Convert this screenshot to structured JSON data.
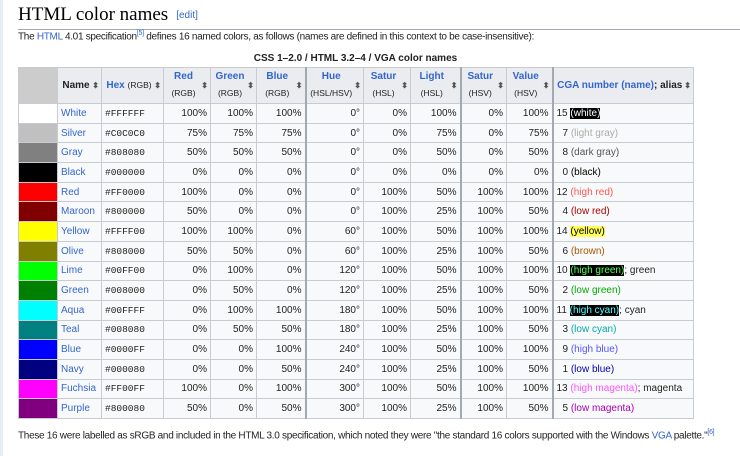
{
  "heading": {
    "title": "HTML color names",
    "edit": "edit"
  },
  "intro": {
    "pre": "The ",
    "link": "HTML",
    "mid": " 4.01 specification",
    "ref": "[5]",
    "post": " defines 16 named colors, as follows (names are defined in this context to be case-insensitive):"
  },
  "caption": "CSS 1–2.0 / HTML 3.2–4 / VGA color names",
  "headers": {
    "name": "Name",
    "hex": "Hex",
    "hex_sub": "(RGB)",
    "red": "Red",
    "green": "Green",
    "blue": "Blue",
    "rgb_sub": "(RGB)",
    "hue": "Hue",
    "hue_sub": "(HSL/HSV)",
    "satur": "Satur",
    "light": "Light",
    "hsl_sub": "(HSL)",
    "satur2": "Satur",
    "value": "Value",
    "hsv_sub": "(HSV)",
    "cga": "CGA number (name)",
    "alias": "; alias",
    "sort": "sort-arrows-icon"
  },
  "rows": [
    {
      "name": "White",
      "hex": "#FFFFFF",
      "swatch": "#FFFFFF",
      "r": "100%",
      "g": "100%",
      "b": "100%",
      "hue": "0°",
      "sl": "0%",
      "l": "100%",
      "sv": "0%",
      "v": "100%",
      "cga": "15",
      "cganame": "(white)",
      "cgacolor": "#ffffff",
      "cgabg": "#000000",
      "alias": ""
    },
    {
      "name": "Silver",
      "hex": "#C0C0C0",
      "swatch": "#C0C0C0",
      "r": "75%",
      "g": "75%",
      "b": "75%",
      "hue": "0°",
      "sl": "0%",
      "l": "75%",
      "sv": "0%",
      "v": "75%",
      "cga": "7",
      "cganame": "(light gray)",
      "cgacolor": "#aaaaaa",
      "cgabg": "",
      "alias": ""
    },
    {
      "name": "Gray",
      "hex": "#808080",
      "swatch": "#808080",
      "r": "50%",
      "g": "50%",
      "b": "50%",
      "hue": "0°",
      "sl": "0%",
      "l": "50%",
      "sv": "0%",
      "v": "50%",
      "cga": "8",
      "cganame": "(dark gray)",
      "cgacolor": "#555555",
      "cgabg": "",
      "alias": ""
    },
    {
      "name": "Black",
      "hex": "#000000",
      "swatch": "#000000",
      "r": "0%",
      "g": "0%",
      "b": "0%",
      "hue": "0°",
      "sl": "0%",
      "l": "0%",
      "sv": "0%",
      "v": "0%",
      "cga": "0",
      "cganame": "(black)",
      "cgacolor": "#000000",
      "cgabg": "",
      "alias": ""
    },
    {
      "name": "Red",
      "hex": "#FF0000",
      "swatch": "#FF0000",
      "r": "100%",
      "g": "0%",
      "b": "0%",
      "hue": "0°",
      "sl": "100%",
      "l": "50%",
      "sv": "100%",
      "v": "100%",
      "cga": "12",
      "cganame": "(high red)",
      "cgacolor": "#ff5555",
      "cgabg": "",
      "alias": ""
    },
    {
      "name": "Maroon",
      "hex": "#800000",
      "swatch": "#800000",
      "r": "50%",
      "g": "0%",
      "b": "0%",
      "hue": "0°",
      "sl": "100%",
      "l": "25%",
      "sv": "100%",
      "v": "50%",
      "cga": "4",
      "cganame": "(low red)",
      "cgacolor": "#aa0000",
      "cgabg": "",
      "alias": ""
    },
    {
      "name": "Yellow",
      "hex": "#FFFF00",
      "swatch": "#FFFF00",
      "r": "100%",
      "g": "100%",
      "b": "0%",
      "hue": "60°",
      "sl": "100%",
      "l": "50%",
      "sv": "100%",
      "v": "100%",
      "cga": "14",
      "cganame": "(yellow)",
      "cgacolor": "#000000",
      "cgabg": "#ffff55",
      "alias": ""
    },
    {
      "name": "Olive",
      "hex": "#808000",
      "swatch": "#808000",
      "r": "50%",
      "g": "50%",
      "b": "0%",
      "hue": "60°",
      "sl": "100%",
      "l": "25%",
      "sv": "100%",
      "v": "50%",
      "cga": "6",
      "cganame": "(brown)",
      "cgacolor": "#aa5500",
      "cgabg": "",
      "alias": ""
    },
    {
      "name": "Lime",
      "hex": "#00FF00",
      "swatch": "#00FF00",
      "r": "0%",
      "g": "100%",
      "b": "0%",
      "hue": "120°",
      "sl": "100%",
      "l": "50%",
      "sv": "100%",
      "v": "100%",
      "cga": "10",
      "cganame": "(high green)",
      "cgacolor": "#55ff55",
      "cgabg": "#000000",
      "alias": "; green"
    },
    {
      "name": "Green",
      "hex": "#008000",
      "swatch": "#008000",
      "r": "0%",
      "g": "50%",
      "b": "0%",
      "hue": "120°",
      "sl": "100%",
      "l": "25%",
      "sv": "100%",
      "v": "50%",
      "cga": "2",
      "cganame": "(low green)",
      "cgacolor": "#00aa00",
      "cgabg": "",
      "alias": ""
    },
    {
      "name": "Aqua",
      "hex": "#00FFFF",
      "swatch": "#00FFFF",
      "r": "0%",
      "g": "100%",
      "b": "100%",
      "hue": "180°",
      "sl": "100%",
      "l": "50%",
      "sv": "100%",
      "v": "100%",
      "cga": "11",
      "cganame": "(high cyan)",
      "cgacolor": "#55ffff",
      "cgabg": "#000000",
      "alias": "; cyan"
    },
    {
      "name": "Teal",
      "hex": "#008080",
      "swatch": "#008080",
      "r": "0%",
      "g": "50%",
      "b": "50%",
      "hue": "180°",
      "sl": "100%",
      "l": "25%",
      "sv": "100%",
      "v": "50%",
      "cga": "3",
      "cganame": "(low cyan)",
      "cgacolor": "#00aaaa",
      "cgabg": "",
      "alias": ""
    },
    {
      "name": "Blue",
      "hex": "#0000FF",
      "swatch": "#0000FF",
      "r": "0%",
      "g": "0%",
      "b": "100%",
      "hue": "240°",
      "sl": "100%",
      "l": "50%",
      "sv": "100%",
      "v": "100%",
      "cga": "9",
      "cganame": "(high blue)",
      "cgacolor": "#5555ff",
      "cgabg": "",
      "alias": ""
    },
    {
      "name": "Navy",
      "hex": "#000080",
      "swatch": "#000080",
      "r": "0%",
      "g": "0%",
      "b": "50%",
      "hue": "240°",
      "sl": "100%",
      "l": "25%",
      "sv": "100%",
      "v": "50%",
      "cga": "1",
      "cganame": "(low blue)",
      "cgacolor": "#0000aa",
      "cgabg": "",
      "alias": ""
    },
    {
      "name": "Fuchsia",
      "hex": "#FF00FF",
      "swatch": "#FF00FF",
      "r": "100%",
      "g": "0%",
      "b": "100%",
      "hue": "300°",
      "sl": "100%",
      "l": "50%",
      "sv": "100%",
      "v": "100%",
      "cga": "13",
      "cganame": "(high magenta)",
      "cgacolor": "#ff55ff",
      "cgabg": "",
      "alias": "; magenta"
    },
    {
      "name": "Purple",
      "hex": "#800080",
      "swatch": "#800080",
      "r": "50%",
      "g": "0%",
      "b": "50%",
      "hue": "300°",
      "sl": "100%",
      "l": "25%",
      "sv": "100%",
      "v": "50%",
      "cga": "5",
      "cganame": "(low magenta)",
      "cgacolor": "#aa00aa",
      "cgabg": "",
      "alias": ""
    }
  ],
  "footer": {
    "pre": "These 16 were labelled as sRGB and included in the HTML 3.0 specification, which noted they were \"the standard 16 colors supported with the Windows ",
    "link": "VGA",
    "post": " palette.\"",
    "ref": "[6]"
  }
}
